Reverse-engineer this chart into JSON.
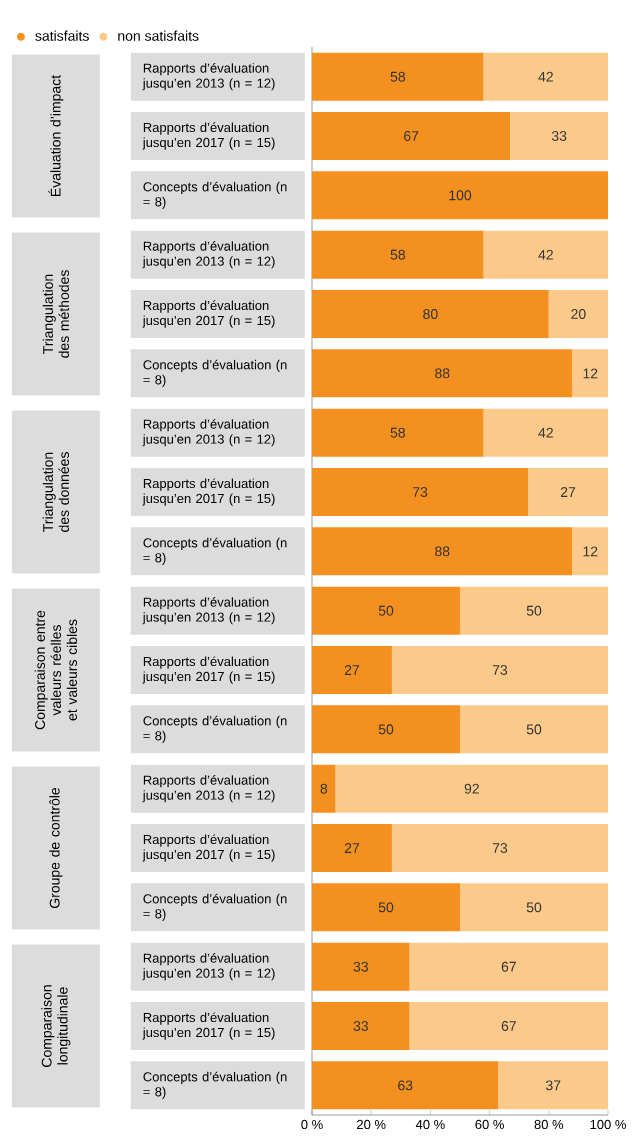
{
  "chart_data": [
    {
      "type": "bar",
      "orientation": "horizontal",
      "stacked": true,
      "data_labels": true,
      "legend": "top left",
      "tick_labels": "y",
      "ylabel": "Évaluation d’impact",
      "xlim": [
        0,
        100
      ],
      "categories": [
        "Rapports d’évaluation jusqu’en 2013 (n = 12)",
        "Rapports d’évaluation jusqu’en 2017 (n = 15)",
        "Concepts d’évaluation (n = 8)"
      ],
      "series": [
        {
          "name": "satisfaits",
          "color": "#f39020",
          "values": [
            58,
            67,
            100
          ]
        },
        {
          "name": "non satisfaits",
          "color": "#fbc98a",
          "values": [
            42,
            33,
            null
          ]
        }
      ]
    },
    {
      "type": "bar",
      "orientation": "horizontal",
      "stacked": true,
      "data_labels": true,
      "tick_labels": "y",
      "ylabel": "Triangulation des méthodes",
      "xlim": [
        0,
        100
      ],
      "categories": [
        "Rapports d’évaluation jusqu’en 2013 (n = 12)",
        "Rapports d’évaluation jusqu’en 2017 (n = 15)",
        "Concepts d’évaluation (n = 8)"
      ],
      "series": [
        {
          "color": "#f39020",
          "values": [
            58,
            80,
            88
          ]
        },
        {
          "color": "#fbc98a",
          "values": [
            42,
            20,
            12
          ]
        }
      ]
    },
    {
      "type": "bar",
      "orientation": "horizontal",
      "stacked": true,
      "data_labels": true,
      "tick_labels": "y",
      "ylabel": "Triangulation des données",
      "xlim": [
        0,
        100
      ],
      "categories": [
        "Rapports d’évaluation jusqu’en 2013 (n = 12)",
        "Rapports d’évaluation jusqu’en 2017 (n = 15)",
        "Concepts d’évaluation (n = 8)"
      ],
      "series": [
        {
          "color": "#f39020",
          "values": [
            58,
            73,
            88
          ]
        },
        {
          "color": "#fbc98a",
          "values": [
            42,
            27,
            12
          ]
        }
      ]
    },
    {
      "type": "bar",
      "orientation": "horizontal",
      "stacked": true,
      "data_labels": true,
      "tick_labels": "y",
      "ylabel": "Comparaison entre valeurs réelles et valeurs cibles",
      "xlim": [
        0,
        100
      ],
      "categories": [
        "Rapports d’évaluation jusqu’en 2013 (n = 12)",
        "Rapports d’évaluation jusqu’en 2017 (n = 15)",
        "Concepts d’évaluation (n = 8)"
      ],
      "series": [
        {
          "color": "#f39020",
          "values": [
            50,
            27,
            50
          ]
        },
        {
          "color": "#fbc98a",
          "values": [
            50,
            73,
            50
          ]
        }
      ]
    },
    {
      "type": "bar",
      "orientation": "horizontal",
      "stacked": true,
      "data_labels": true,
      "tick_labels": "y",
      "ylabel": "Groupe de contrôle",
      "xlim": [
        0,
        100
      ],
      "categories": [
        "Rapports d’évaluation jusqu’en 2013 (n = 12)",
        "Rapports d’évaluation jusqu’en 2017 (n = 15)",
        "Concepts d’évaluation (n = 8)"
      ],
      "series": [
        {
          "color": "#f39020",
          "values": [
            8,
            27,
            50
          ]
        },
        {
          "color": "#fbc98a",
          "values": [
            92,
            73,
            50
          ]
        }
      ]
    },
    {
      "type": "bar",
      "orientation": "horizontal",
      "stacked": true,
      "data_labels": true,
      "ylabel": "Comparaison longitudinale",
      "xlim": [
        0,
        100
      ],
      "xticks": [
        {
          "value": 0,
          "label": "0 %"
        },
        {
          "value": 20,
          "label": "20 %"
        },
        {
          "value": 40,
          "label": "40 %"
        },
        {
          "value": 60,
          "label": "60 %"
        },
        {
          "value": 80,
          "label": "80 %"
        },
        {
          "value": 100,
          "label": "100 %"
        }
      ],
      "categories": [
        "Rapports d’évaluation jusqu’en 2013 (n = 12)",
        "Rapports d’évaluation jusqu’en 2017 (n = 15)",
        "Concepts d’évaluation (n = 8)"
      ],
      "series": [
        {
          "color": "#f39020",
          "values": [
            33,
            33,
            63
          ]
        },
        {
          "color": "#fbc98a",
          "values": [
            67,
            67,
            37
          ]
        }
      ]
    }
  ]
}
